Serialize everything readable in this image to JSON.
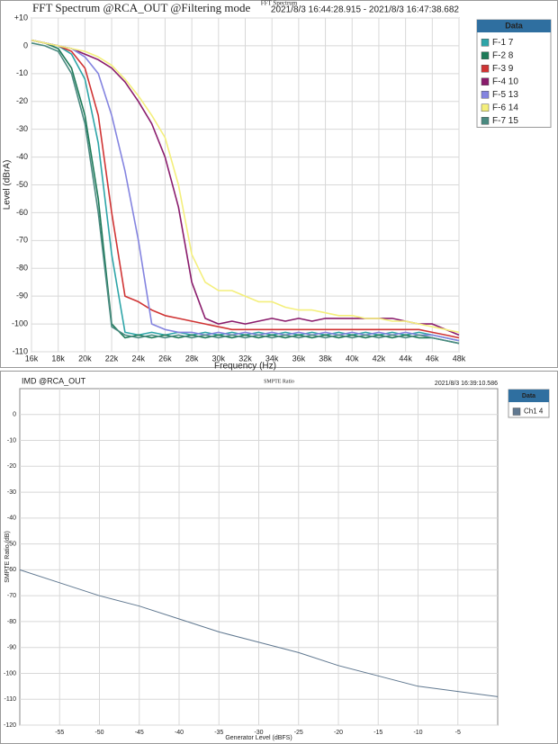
{
  "chart_data": [
    {
      "type": "line",
      "title": "FFT Spectrum @RCA_OUT @Filtering mode",
      "subtitle": "FFT Spectrum",
      "timestamp": "2021/8/3 16:44:28.915 - 2021/8/3 16:47:38.682",
      "x_label": "Frequency (Hz)",
      "y_label": "Level (dBrA)",
      "legend_title": "Data",
      "grid": true,
      "xlim": [
        16000,
        48000
      ],
      "ylim": [
        -110,
        10
      ],
      "xticks": [
        {
          "value": 16000,
          "label": "16k"
        },
        {
          "value": 18000,
          "label": "18k"
        },
        {
          "value": 20000,
          "label": "20k"
        },
        {
          "value": 22000,
          "label": "22k"
        },
        {
          "value": 24000,
          "label": "24k"
        },
        {
          "value": 26000,
          "label": "26k"
        },
        {
          "value": 28000,
          "label": "28k"
        },
        {
          "value": 30000,
          "label": "30k"
        },
        {
          "value": 32000,
          "label": "32k"
        },
        {
          "value": 34000,
          "label": "34k"
        },
        {
          "value": 36000,
          "label": "36k"
        },
        {
          "value": 38000,
          "label": "38k"
        },
        {
          "value": 40000,
          "label": "40k"
        },
        {
          "value": 42000,
          "label": "42k"
        },
        {
          "value": 44000,
          "label": "44k"
        },
        {
          "value": 46000,
          "label": "46k"
        },
        {
          "value": 48000,
          "label": "48k"
        }
      ],
      "yticks": [
        {
          "value": 10,
          "label": "+10"
        },
        0,
        -10,
        -20,
        -30,
        -40,
        -50,
        -60,
        -70,
        -80,
        -90,
        -100,
        -110
      ],
      "x": [
        16000,
        17000,
        18000,
        19000,
        20000,
        21000,
        22000,
        23000,
        24000,
        25000,
        26000,
        27000,
        28000,
        29000,
        30000,
        31000,
        32000,
        33000,
        34000,
        35000,
        36000,
        37000,
        38000,
        39000,
        40000,
        41000,
        42000,
        43000,
        44000,
        45000,
        46000,
        47000,
        48000
      ],
      "series": [
        {
          "name": "F-1 7",
          "color": "#2ea5a8",
          "values": [
            2,
            1,
            0,
            -3,
            -12,
            -35,
            -75,
            -103,
            -104,
            -103,
            -104,
            -103,
            -104,
            -103,
            -104,
            -103,
            -104,
            -103,
            -104,
            -103,
            -104,
            -103,
            -104,
            -103,
            -104,
            -103,
            -104,
            -103,
            -104,
            -103,
            -104,
            -105,
            -106
          ]
        },
        {
          "name": "F-2 8",
          "color": "#1d7a58",
          "values": [
            2,
            1,
            -1,
            -8,
            -25,
            -55,
            -100,
            -105,
            -104,
            -105,
            -104,
            -105,
            -104,
            -105,
            -104,
            -105,
            -104,
            -105,
            -104,
            -105,
            -104,
            -105,
            -104,
            -105,
            -104,
            -105,
            -104,
            -105,
            -104,
            -105,
            -105,
            -106,
            -107
          ]
        },
        {
          "name": "F-3 9",
          "color": "#d03434",
          "values": [
            2,
            1,
            0,
            -2,
            -8,
            -25,
            -60,
            -90,
            -92,
            -95,
            -97,
            -98,
            -99,
            -100,
            -101,
            -102,
            -102,
            -102,
            -102,
            -102,
            -102,
            -102,
            -102,
            -102,
            -102,
            -102,
            -102,
            -102,
            -102,
            -102,
            -103,
            -104,
            -105
          ]
        },
        {
          "name": "F-4 10",
          "color": "#8a1c6c",
          "values": [
            2,
            1,
            0,
            -1,
            -3,
            -5,
            -8,
            -13,
            -20,
            -28,
            -40,
            -58,
            -85,
            -98,
            -100,
            -99,
            -100,
            -99,
            -98,
            -99,
            -98,
            -99,
            -98,
            -98,
            -98,
            -98,
            -98,
            -98,
            -99,
            -100,
            -100,
            -102,
            -104
          ]
        },
        {
          "name": "F-5 13",
          "color": "#8484e0",
          "values": [
            2,
            1,
            0,
            -1,
            -4,
            -10,
            -25,
            -45,
            -70,
            -100,
            -102,
            -103,
            -103,
            -104,
            -103,
            -104,
            -103,
            -104,
            -103,
            -104,
            -103,
            -104,
            -103,
            -104,
            -103,
            -104,
            -103,
            -104,
            -103,
            -104,
            -104,
            -105,
            -106
          ]
        },
        {
          "name": "F-6 14",
          "color": "#f4ef7c",
          "values": [
            2,
            1,
            0,
            -1,
            -2,
            -4,
            -7,
            -12,
            -18,
            -25,
            -33,
            -50,
            -75,
            -85,
            -88,
            -88,
            -90,
            -92,
            -92,
            -94,
            -95,
            -95,
            -96,
            -97,
            -97,
            -98,
            -98,
            -99,
            -99,
            -100,
            -101,
            -102,
            -103
          ]
        },
        {
          "name": "F-7 15",
          "color": "#4a8a80",
          "values": [
            1,
            0,
            -2,
            -10,
            -28,
            -60,
            -101,
            -104,
            -105,
            -104,
            -105,
            -104,
            -105,
            -104,
            -105,
            -104,
            -105,
            -104,
            -105,
            -104,
            -105,
            -104,
            -105,
            -104,
            -105,
            -104,
            -105,
            -104,
            -105,
            -104,
            -105,
            -106,
            -107
          ]
        }
      ]
    },
    {
      "type": "line",
      "title": "IMD @RCA_OUT",
      "subtitle": "SMPTE Ratio",
      "timestamp": "2021/8/3 16:39:10.586",
      "x_label": "Generator Level (dBFS)",
      "y_label": "SMPTE Ratio (dB)",
      "legend_title": "Data",
      "grid": true,
      "xlim": [
        -60,
        0
      ],
      "ylim": [
        -120,
        10
      ],
      "xticks": [
        -55,
        -50,
        -45,
        -40,
        -35,
        -30,
        -25,
        -20,
        -15,
        -10,
        -5
      ],
      "yticks": [
        0,
        -10,
        -20,
        -30,
        -40,
        -50,
        -60,
        -70,
        -80,
        -90,
        -100,
        -110,
        -120
      ],
      "x": [
        -60,
        -55,
        -50,
        -45,
        -40,
        -35,
        -30,
        -25,
        -20,
        -15,
        -10,
        -5,
        0
      ],
      "series": [
        {
          "name": "Ch1 4",
          "color": "#607890",
          "values": [
            -60,
            -65,
            -70,
            -74,
            -79,
            -84,
            -88,
            -92,
            -97,
            -101,
            -105,
            -107,
            -109
          ]
        }
      ]
    }
  ]
}
